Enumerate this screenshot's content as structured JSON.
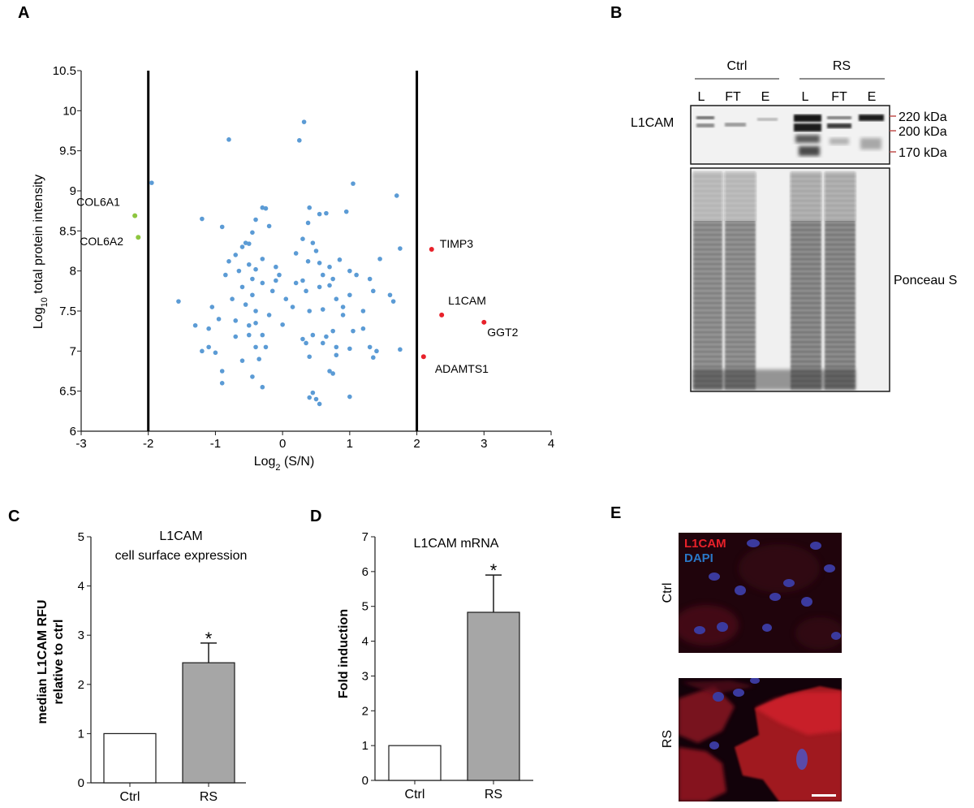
{
  "panels": {
    "a": "A",
    "b": "B",
    "c": "C",
    "d": "D",
    "e": "E"
  },
  "colors": {
    "background": "#5b9bd5",
    "up": "#e8212a",
    "down": "#8dc63f",
    "bar_ctrl": "#ffffff",
    "bar_rs": "#a6a6a6",
    "axis": "#1a1a1a",
    "if_label_red": "#e8212a",
    "if_label_blue": "#2a78c8"
  },
  "chart_data": [
    {
      "panel": "A",
      "type": "scatter",
      "xlabel_main": "Log",
      "xlabel_sub": "2",
      "xlabel_rest": " (S/N)",
      "ylabel_main": "Log",
      "ylabel_sub": "10",
      "ylabel_rest": " total protein intensity",
      "xlim": [
        -3,
        4
      ],
      "ylim": [
        6,
        10.5
      ],
      "x_ticks": [
        "-3",
        "-2",
        "-1",
        "0",
        "1",
        "2",
        "3",
        "4"
      ],
      "y_ticks": [
        "6",
        "6.5",
        "7",
        "7.5",
        "8",
        "8.5",
        "9",
        "9.5",
        "10",
        "10.5"
      ],
      "thresholds_x": [
        -2,
        2
      ],
      "labeled_points": [
        {
          "label": "COL6A1",
          "x": -2.2,
          "y": 8.69,
          "group": "down"
        },
        {
          "label": "COL6A2",
          "x": -2.15,
          "y": 8.42,
          "group": "down"
        },
        {
          "label": "TIMP3",
          "x": 2.22,
          "y": 8.27,
          "group": "up"
        },
        {
          "label": "L1CAM",
          "x": 2.37,
          "y": 7.45,
          "group": "up"
        },
        {
          "label": "GGT2",
          "x": 3.0,
          "y": 7.36,
          "group": "up"
        },
        {
          "label": "ADAMTS1",
          "x": 2.1,
          "y": 6.93,
          "group": "up"
        }
      ],
      "background_points": [
        [
          -1.95,
          9.1
        ],
        [
          -0.8,
          9.64
        ],
        [
          0.32,
          9.86
        ],
        [
          0.25,
          9.63
        ],
        [
          1.05,
          9.09
        ],
        [
          1.7,
          8.94
        ],
        [
          -1.2,
          8.65
        ],
        [
          -0.9,
          8.55
        ],
        [
          -0.3,
          8.79
        ],
        [
          -0.25,
          8.78
        ],
        [
          -0.4,
          8.64
        ],
        [
          -0.2,
          8.56
        ],
        [
          -0.45,
          8.48
        ],
        [
          0.4,
          8.79
        ],
        [
          0.55,
          8.71
        ],
        [
          0.65,
          8.72
        ],
        [
          0.95,
          8.74
        ],
        [
          0.38,
          8.6
        ],
        [
          -0.55,
          8.35
        ],
        [
          -0.5,
          8.34
        ],
        [
          -0.6,
          8.3
        ],
        [
          -0.7,
          8.2
        ],
        [
          -0.8,
          8.12
        ],
        [
          -0.5,
          8.08
        ],
        [
          -0.65,
          8.0
        ],
        [
          -0.4,
          8.02
        ],
        [
          -0.3,
          8.15
        ],
        [
          -0.1,
          8.05
        ],
        [
          0.3,
          8.4
        ],
        [
          0.2,
          8.22
        ],
        [
          0.45,
          8.35
        ],
        [
          0.5,
          8.25
        ],
        [
          0.38,
          8.12
        ],
        [
          0.55,
          8.1
        ],
        [
          0.7,
          8.05
        ],
        [
          0.85,
          8.14
        ],
        [
          0.6,
          7.95
        ],
        [
          0.75,
          7.9
        ],
        [
          0.3,
          7.88
        ],
        [
          1.0,
          8.0
        ],
        [
          1.1,
          7.95
        ],
        [
          1.45,
          8.15
        ],
        [
          1.75,
          8.28
        ],
        [
          -0.85,
          7.95
        ],
        [
          -0.6,
          7.8
        ],
        [
          -0.45,
          7.7
        ],
        [
          -0.3,
          7.85
        ],
        [
          -0.1,
          7.88
        ],
        [
          -0.15,
          7.75
        ],
        [
          0.05,
          7.65
        ],
        [
          0.2,
          7.85
        ],
        [
          0.35,
          7.75
        ],
        [
          0.55,
          7.8
        ],
        [
          0.7,
          7.82
        ],
        [
          0.8,
          7.65
        ],
        [
          1.0,
          7.7
        ],
        [
          1.3,
          7.9
        ],
        [
          1.35,
          7.75
        ],
        [
          1.6,
          7.7
        ],
        [
          1.65,
          7.62
        ],
        [
          -1.55,
          7.62
        ],
        [
          -1.05,
          7.55
        ],
        [
          -0.75,
          7.65
        ],
        [
          -0.55,
          7.58
        ],
        [
          -0.4,
          7.5
        ],
        [
          -0.2,
          7.45
        ],
        [
          0.4,
          7.5
        ],
        [
          0.6,
          7.52
        ],
        [
          0.9,
          7.45
        ],
        [
          1.2,
          7.5
        ],
        [
          -1.3,
          7.32
        ],
        [
          -1.1,
          7.28
        ],
        [
          -0.95,
          7.4
        ],
        [
          -0.7,
          7.38
        ],
        [
          -0.5,
          7.32
        ],
        [
          -0.4,
          7.35
        ],
        [
          0.0,
          7.33
        ],
        [
          -0.3,
          7.2
        ],
        [
          -0.5,
          7.2
        ],
        [
          -0.7,
          7.18
        ],
        [
          0.3,
          7.15
        ],
        [
          0.45,
          7.2
        ],
        [
          0.65,
          7.18
        ],
        [
          0.75,
          7.25
        ],
        [
          1.05,
          7.25
        ],
        [
          1.2,
          7.28
        ],
        [
          -1.2,
          7.0
        ],
        [
          -1.1,
          7.05
        ],
        [
          -0.4,
          7.05
        ],
        [
          -0.25,
          7.05
        ],
        [
          0.35,
          7.1
        ],
        [
          0.6,
          7.1
        ],
        [
          0.8,
          7.05
        ],
        [
          1.0,
          7.03
        ],
        [
          1.3,
          7.05
        ],
        [
          1.4,
          7.0
        ],
        [
          1.75,
          7.02
        ],
        [
          -0.6,
          6.88
        ],
        [
          -0.35,
          6.9
        ],
        [
          0.4,
          6.93
        ],
        [
          0.8,
          6.95
        ],
        [
          1.35,
          6.92
        ],
        [
          -0.9,
          6.75
        ],
        [
          -0.45,
          6.68
        ],
        [
          0.7,
          6.75
        ],
        [
          0.75,
          6.72
        ],
        [
          -0.9,
          6.6
        ],
        [
          -0.3,
          6.55
        ],
        [
          0.45,
          6.48
        ],
        [
          0.4,
          6.42
        ],
        [
          0.5,
          6.4
        ],
        [
          1.0,
          6.43
        ],
        [
          0.55,
          6.34
        ],
        [
          -1.0,
          6.98
        ],
        [
          0.15,
          7.55
        ],
        [
          -0.05,
          7.95
        ],
        [
          0.9,
          7.55
        ],
        [
          -0.45,
          7.9
        ]
      ]
    },
    {
      "panel": "C",
      "type": "bar",
      "title_line1": "L1CAM",
      "title_line2": "cell surface expression",
      "ylabel_line1": "median L1CAM RFU",
      "ylabel_line2": "relative to ctrl",
      "categories": [
        "Ctrl",
        "RS"
      ],
      "values": [
        1.0,
        2.44
      ],
      "errors": [
        0,
        0.4
      ],
      "significance": [
        "",
        "*"
      ],
      "ylim": [
        0,
        5
      ],
      "y_ticks": [
        "0",
        "1",
        "2",
        "3",
        "4",
        "5"
      ]
    },
    {
      "panel": "D",
      "type": "bar",
      "title_line1": "L1CAM mRNA",
      "ylabel": "Fold induction",
      "categories": [
        "Ctrl",
        "RS"
      ],
      "values": [
        1.0,
        4.83
      ],
      "errors": [
        0,
        1.07
      ],
      "significance": [
        "",
        "*"
      ],
      "ylim": [
        0,
        7
      ],
      "y_ticks": [
        "0",
        "1",
        "2",
        "3",
        "4",
        "5",
        "6",
        "7"
      ]
    }
  ],
  "blot": {
    "groups": [
      "Ctrl",
      "RS"
    ],
    "lanes": [
      "L",
      "FT",
      "E",
      "L",
      "FT",
      "E"
    ],
    "protein": "L1CAM",
    "markers": [
      "220 kDa",
      "200 kDa",
      "170 kDa"
    ],
    "stain": "Ponceau S"
  },
  "immuno": {
    "stain1": "L1CAM",
    "stain2": "DAPI",
    "rows": [
      "Ctrl",
      "RS"
    ]
  }
}
